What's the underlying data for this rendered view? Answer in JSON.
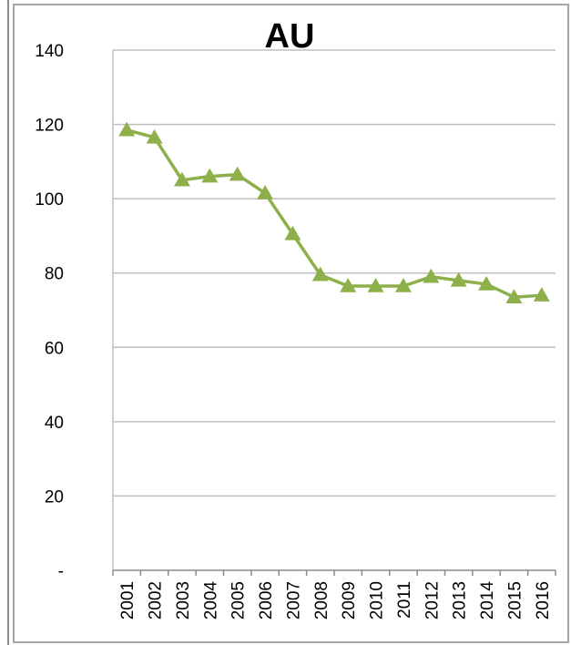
{
  "chart_data": {
    "type": "line",
    "title": "AU",
    "xlabel": "",
    "ylabel": "",
    "x": [
      "2001",
      "2002",
      "2003",
      "2004",
      "2005",
      "2006",
      "2007",
      "2008",
      "2009",
      "2010",
      "2011",
      "2012",
      "2013",
      "2014",
      "2015",
      "2016"
    ],
    "series": [
      {
        "values": [
          118.5,
          116.5,
          105,
          106,
          106.5,
          101.5,
          90.5,
          79.5,
          76.5,
          76.5,
          76.5,
          79,
          78,
          77,
          73.5,
          74
        ],
        "color": "#8db04a",
        "marker": "triangle"
      }
    ],
    "ylim": [
      0,
      140
    ],
    "yticks": [
      0,
      20,
      40,
      60,
      80,
      100,
      120,
      140
    ],
    "ytick_labels": [
      "-",
      "20",
      "40",
      "60",
      "80",
      "100",
      "120",
      "140"
    ],
    "grid": true,
    "legend": "none"
  },
  "colors": {
    "gridline": "#bfbfbf",
    "axis": "#8c8c8c",
    "series": "#8db04a"
  }
}
